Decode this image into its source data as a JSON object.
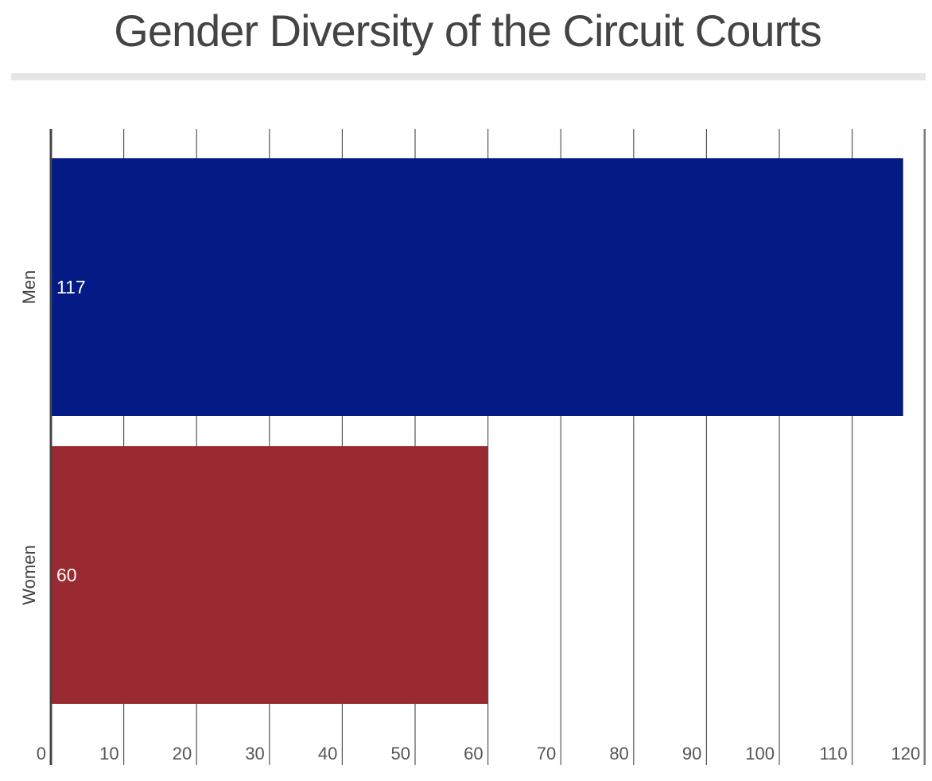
{
  "title": "Gender Diversity of the Circuit Courts",
  "chart_data": {
    "type": "bar",
    "orientation": "horizontal",
    "title": "Gender Diversity of the Circuit Courts",
    "categories": [
      "Men",
      "Women"
    ],
    "values": [
      117,
      60
    ],
    "data_labels": [
      "117",
      "60"
    ],
    "colors": [
      "#041A85",
      "#992A31"
    ],
    "xlim": [
      0,
      120
    ],
    "xticks": [
      0,
      10,
      20,
      30,
      40,
      50,
      60,
      70,
      80,
      90,
      100,
      110,
      120
    ],
    "tick_labels": [
      "0",
      "10",
      "20",
      "30",
      "40",
      "50",
      "60",
      "70",
      "80",
      "90",
      "100",
      "110",
      "120"
    ],
    "xlabel": "",
    "ylabel": "",
    "grid": "vertical",
    "legend": "none"
  }
}
